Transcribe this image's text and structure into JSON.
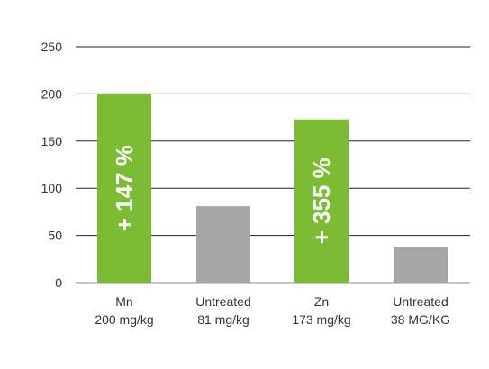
{
  "chart_data": {
    "type": "bar",
    "categories": [
      [
        "Mn",
        "200 mg/kg"
      ],
      [
        "Untreated",
        "81 mg/kg"
      ],
      [
        "Zn",
        "173 mg/kg"
      ],
      [
        "Untreated",
        "38 MG/KG"
      ]
    ],
    "values": [
      200,
      81,
      173,
      38
    ],
    "bar_colors": [
      "#7cbb34",
      "#a6a6a6",
      "#7cbb34",
      "#a6a6a6"
    ],
    "bar_labels": [
      "+ 147 %",
      "",
      "+ 355 %",
      ""
    ],
    "yticks": [
      "0",
      "50",
      "100",
      "150",
      "200",
      "250"
    ],
    "ylim": [
      0,
      250
    ],
    "grid": true,
    "legend": "none"
  }
}
